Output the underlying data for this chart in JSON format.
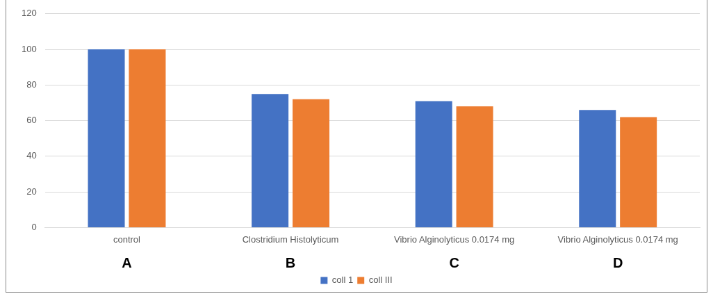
{
  "chart_data": {
    "type": "bar",
    "categories": [
      "control",
      "Clostridium Histolyticum",
      "Vibrio Alginolyticus 0.0174 mg",
      "Vibrio Alginolyticus 0.0174 mg"
    ],
    "series": [
      {
        "name": "coll 1",
        "color": "#4472c4",
        "values": [
          100,
          75,
          71,
          66
        ]
      },
      {
        "name": "coll III",
        "color": "#ed7d31",
        "values": [
          100,
          72,
          68,
          62
        ]
      }
    ],
    "ylim": [
      0,
      120
    ],
    "yticks": [
      0,
      20,
      40,
      60,
      80,
      100,
      120
    ],
    "grid": "y",
    "legend": "bottom",
    "annotations": [
      "A",
      "B",
      "C",
      "D"
    ]
  }
}
